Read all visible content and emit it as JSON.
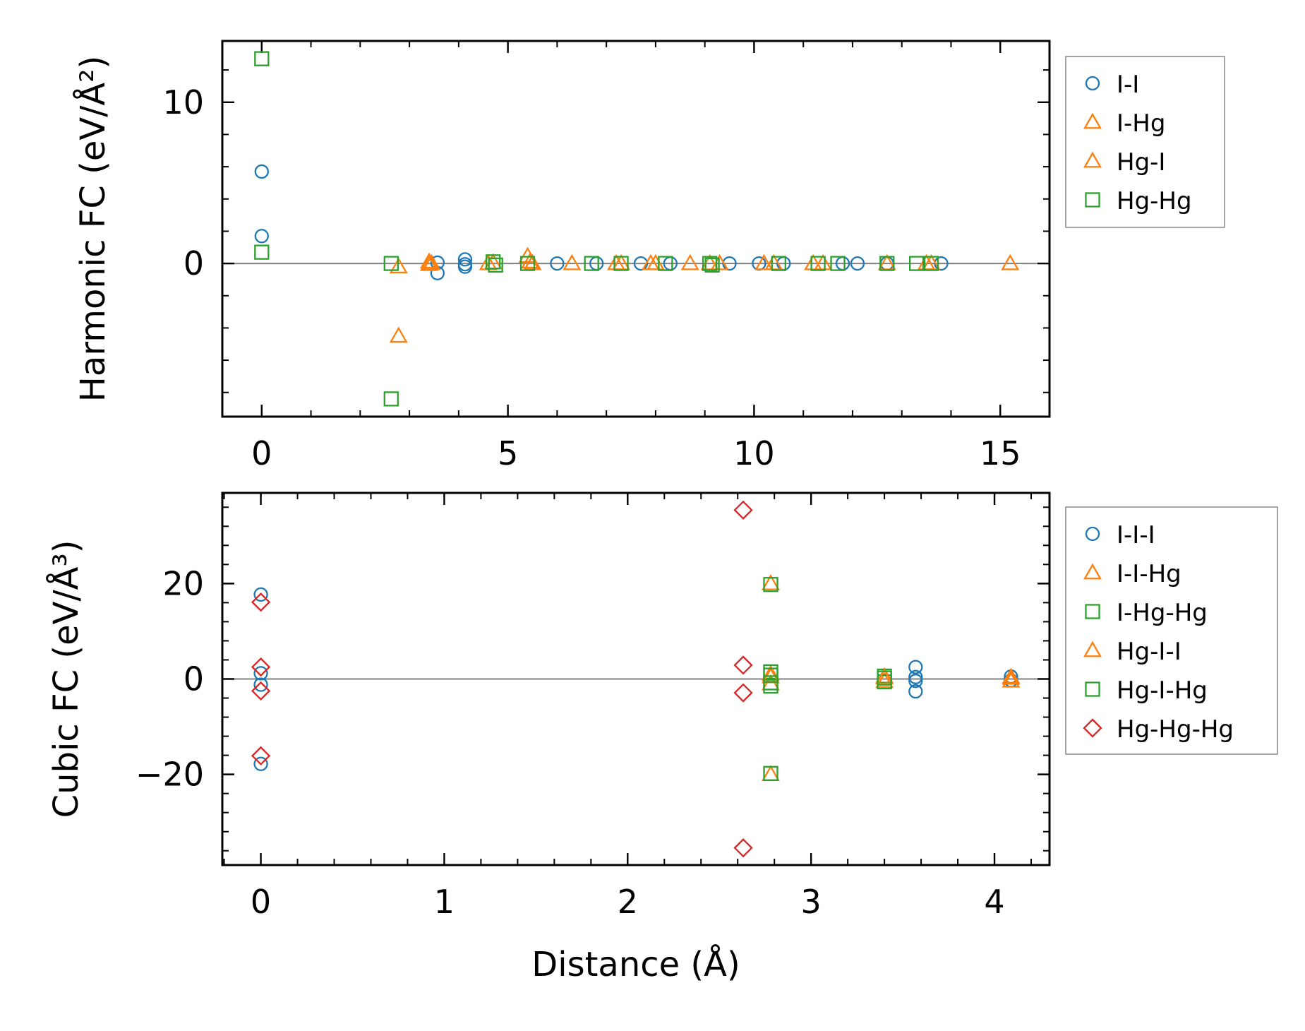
{
  "chart_data": [
    {
      "type": "scatter",
      "ylabel": "Harmonic FC (eV/Å²)",
      "xlabel": "",
      "xlim": [
        -0.8,
        16
      ],
      "ylim": [
        -9.5,
        13.8
      ],
      "xticks": [
        0,
        5,
        10,
        15
      ],
      "xtick_labels": [
        "0",
        "5",
        "10",
        "15"
      ],
      "yticks": [
        0,
        10
      ],
      "ytick_labels": [
        "0",
        "10"
      ],
      "zero_line": true,
      "legend_position": "outside-right-top",
      "series": [
        {
          "name": "I-I",
          "marker": "circle",
          "color": "#1f77b4",
          "points": [
            [
              0,
              5.7
            ],
            [
              0,
              1.7
            ],
            [
              3.57,
              0.05
            ],
            [
              3.57,
              -0.6
            ],
            [
              4.13,
              0.25
            ],
            [
              4.13,
              -0.05
            ],
            [
              4.13,
              -0.2
            ],
            [
              6.0,
              0
            ],
            [
              6.8,
              0
            ],
            [
              7.7,
              0
            ],
            [
              8.3,
              0
            ],
            [
              9.5,
              0
            ],
            [
              10.1,
              0
            ],
            [
              10.6,
              0
            ],
            [
              11.8,
              0
            ],
            [
              12.1,
              0
            ],
            [
              12.7,
              0
            ],
            [
              13.8,
              0
            ]
          ]
        },
        {
          "name": "I-Hg",
          "marker": "triangle",
          "color": "#ff7f0e",
          "points": [
            [
              2.78,
              -0.2
            ],
            [
              2.78,
              -4.5
            ],
            [
              3.4,
              0.1
            ],
            [
              3.4,
              -0.05
            ],
            [
              4.6,
              0
            ],
            [
              5.4,
              0.45
            ],
            [
              5.5,
              0
            ],
            [
              6.3,
              0
            ],
            [
              7.3,
              0
            ],
            [
              7.9,
              0
            ],
            [
              8.7,
              0
            ],
            [
              9.1,
              0
            ],
            [
              10.2,
              0
            ],
            [
              11.2,
              0
            ],
            [
              12.7,
              0
            ],
            [
              13.6,
              0
            ],
            [
              15.2,
              0
            ]
          ]
        },
        {
          "name": "Hg-I",
          "marker": "triangle",
          "color": "#ff7f0e",
          "points": [
            [
              3.45,
              0
            ],
            [
              4.7,
              0.05
            ],
            [
              5.45,
              0.1
            ],
            [
              7.2,
              0
            ],
            [
              8.0,
              0
            ],
            [
              9.3,
              0
            ],
            [
              10.4,
              0
            ],
            [
              11.4,
              0
            ],
            [
              13.5,
              0
            ]
          ]
        },
        {
          "name": "Hg-Hg",
          "marker": "square",
          "color": "#2ca02c",
          "points": [
            [
              0,
              12.7
            ],
            [
              0,
              0.7
            ],
            [
              2.63,
              0
            ],
            [
              2.63,
              -8.4
            ],
            [
              4.7,
              0.1
            ],
            [
              4.75,
              -0.1
            ],
            [
              5.4,
              0
            ],
            [
              6.7,
              0
            ],
            [
              7.3,
              0
            ],
            [
              8.2,
              0
            ],
            [
              9.1,
              0
            ],
            [
              9.15,
              -0.1
            ],
            [
              10.5,
              0
            ],
            [
              11.3,
              0
            ],
            [
              11.7,
              0
            ],
            [
              12.7,
              0
            ],
            [
              13.3,
              0
            ],
            [
              13.6,
              0
            ]
          ]
        }
      ]
    },
    {
      "type": "scatter",
      "ylabel": "Cubic FC (eV/Å³)",
      "xlabel": "Distance (Å)",
      "xlim": [
        -0.21,
        4.3
      ],
      "ylim": [
        -39,
        39
      ],
      "xticks": [
        0,
        1,
        2,
        3,
        4
      ],
      "xtick_labels": [
        "0",
        "1",
        "2",
        "3",
        "4"
      ],
      "yticks": [
        -20,
        0,
        20
      ],
      "ytick_labels": [
        "−20",
        "0",
        "20"
      ],
      "zero_line": true,
      "legend_position": "outside-right-top",
      "series": [
        {
          "name": "I-I-I",
          "marker": "circle",
          "color": "#1f77b4",
          "points": [
            [
              0,
              17.7
            ],
            [
              0,
              1.2
            ],
            [
              0,
              -1.2
            ],
            [
              0,
              -17.8
            ],
            [
              3.57,
              2.5
            ],
            [
              3.57,
              0.4
            ],
            [
              3.57,
              -0.4
            ],
            [
              3.57,
              -2.6
            ],
            [
              4.09,
              0.5
            ],
            [
              4.09,
              -0.3
            ]
          ]
        },
        {
          "name": "I-I-Hg",
          "marker": "triangle",
          "color": "#ff7f0e",
          "points": [
            [
              2.78,
              20.0
            ],
            [
              2.78,
              1.0
            ],
            [
              2.78,
              -1.0
            ],
            [
              2.78,
              -20.0
            ],
            [
              3.4,
              0.5
            ],
            [
              3.4,
              -0.5
            ],
            [
              4.09,
              0.4
            ],
            [
              4.09,
              -0.4
            ]
          ]
        },
        {
          "name": "I-Hg-Hg",
          "marker": "square",
          "color": "#2ca02c",
          "points": [
            [
              2.78,
              19.8
            ],
            [
              2.78,
              1.5
            ],
            [
              2.78,
              -1.5
            ],
            [
              2.78,
              -19.8
            ],
            [
              3.4,
              0.6
            ],
            [
              3.4,
              -0.6
            ]
          ]
        },
        {
          "name": "Hg-I-I",
          "marker": "triangle",
          "color": "#ff7f0e",
          "points": [
            [
              2.78,
              0.5
            ],
            [
              3.4,
              0.3
            ],
            [
              4.09,
              0.2
            ]
          ]
        },
        {
          "name": "Hg-I-Hg",
          "marker": "square",
          "color": "#2ca02c",
          "points": [
            [
              2.78,
              0.8
            ],
            [
              2.78,
              -0.8
            ],
            [
              3.4,
              0.2
            ]
          ]
        },
        {
          "name": "Hg-Hg-Hg",
          "marker": "diamond",
          "color": "#d62728",
          "points": [
            [
              0,
              16.1
            ],
            [
              0,
              2.5
            ],
            [
              0,
              -2.5
            ],
            [
              0,
              -16.1
            ],
            [
              2.63,
              35.4
            ],
            [
              2.63,
              2.9
            ],
            [
              2.63,
              -2.9
            ],
            [
              2.63,
              -35.4
            ]
          ]
        }
      ]
    }
  ]
}
